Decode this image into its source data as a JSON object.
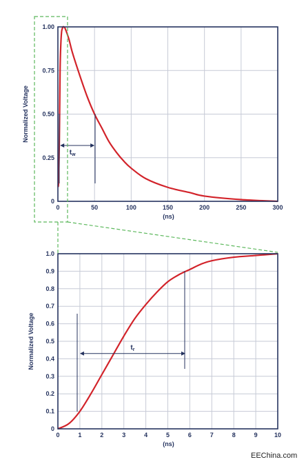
{
  "colors": {
    "axis": "#24325e",
    "grid": "#c6cad6",
    "curve": "#d2232a",
    "zoom_box": "#5cb85c",
    "text": "#24325e"
  },
  "chart_data": [
    {
      "type": "line",
      "title": "",
      "xlabel": "(ns)",
      "ylabel": "Normalized Voltage",
      "xlim": [
        0,
        300
      ],
      "ylim": [
        0,
        1.0
      ],
      "x_ticks": [
        "0",
        "50",
        "100",
        "150",
        "200",
        "250",
        "300"
      ],
      "y_ticks": [
        "0",
        "0.25",
        "0.50",
        "0.75",
        "1.00"
      ],
      "grid": true,
      "series": [
        {
          "x": [
            0,
            1,
            2,
            3,
            4,
            5,
            6,
            7,
            8,
            10,
            15,
            20,
            30,
            40,
            50,
            60,
            70,
            80,
            90,
            100,
            120,
            150,
            180,
            200,
            250,
            300
          ],
          "y": [
            0.09,
            0.11,
            0.35,
            0.75,
            0.9,
            0.97,
            0.99,
            1.0,
            1.0,
            0.99,
            0.93,
            0.85,
            0.72,
            0.6,
            0.5,
            0.42,
            0.34,
            0.28,
            0.23,
            0.19,
            0.13,
            0.08,
            0.05,
            0.03,
            0.01,
            0.0
          ]
        }
      ],
      "annotations": [
        {
          "label": "t",
          "subscript": "w",
          "x_from": 3,
          "x_to": 50,
          "y": 0.32
        }
      ]
    },
    {
      "type": "line",
      "title": "",
      "xlabel": "(ns)",
      "ylabel": "Normalized Voltage",
      "xlim": [
        0,
        10
      ],
      "ylim": [
        0,
        1.0
      ],
      "x_ticks": [
        "0",
        "1",
        "2",
        "3",
        "4",
        "5",
        "6",
        "7",
        "8",
        "9",
        "10"
      ],
      "y_ticks": [
        "0",
        "0.1",
        "0.2",
        "0.3",
        "0.4",
        "0.5",
        "0.6",
        "0.7",
        "0.8",
        "0.9",
        "1.0"
      ],
      "grid": true,
      "series": [
        {
          "x": [
            0,
            0.5,
            1,
            1.5,
            2,
            2.5,
            3,
            3.5,
            4,
            4.5,
            5,
            5.5,
            6,
            6.5,
            7,
            8,
            9,
            10
          ],
          "y": [
            0.0,
            0.03,
            0.1,
            0.2,
            0.31,
            0.42,
            0.53,
            0.63,
            0.71,
            0.78,
            0.84,
            0.88,
            0.91,
            0.94,
            0.96,
            0.98,
            0.99,
            1.0
          ]
        }
      ],
      "annotations": [
        {
          "label": "t",
          "subscript": "r",
          "x_from": 1,
          "x_to": 5.8,
          "y": 0.43
        }
      ]
    }
  ],
  "watermark": "EEChina.com"
}
